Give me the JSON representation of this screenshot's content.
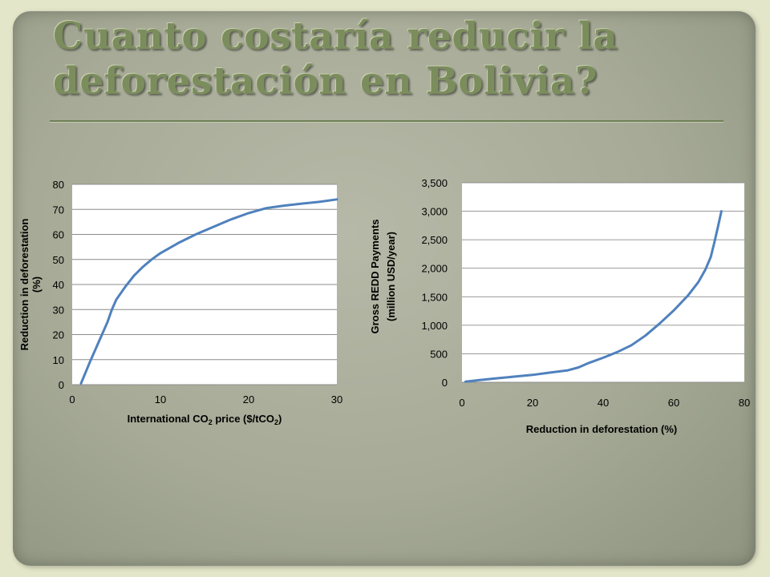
{
  "slide": {
    "title_line1": "Cuanto costaría reducir la",
    "title_line2": "deforestación en Bolivia?"
  },
  "chart_data": [
    {
      "type": "line",
      "title": "",
      "xlabel_parts": [
        "International  CO",
        "2",
        " price  ($/tCO",
        "2",
        ")"
      ],
      "ylabel": [
        "Reduction  in  deforestation",
        "(%)"
      ],
      "xlim": [
        0,
        30
      ],
      "ylim": [
        0,
        80
      ],
      "x_ticks": [
        0,
        10,
        20,
        30
      ],
      "y_ticks": [
        0,
        10,
        20,
        30,
        40,
        50,
        60,
        70,
        80
      ],
      "x_tick_labels": [
        "0",
        "10",
        "20",
        "30"
      ],
      "y_tick_labels": [
        "0",
        "10",
        "20",
        "30",
        "40",
        "50",
        "60",
        "70",
        "80"
      ],
      "grid": "horizontal",
      "line_color": "#4f81bd",
      "x": [
        1,
        2,
        3,
        4,
        4.5,
        5,
        6,
        7,
        8,
        9,
        10,
        12,
        14,
        16,
        18,
        20,
        22,
        24,
        26,
        28,
        30
      ],
      "y": [
        0.5,
        9,
        17,
        25,
        30,
        34,
        39,
        43.5,
        47,
        50,
        52.5,
        56.5,
        60,
        63,
        66,
        68.5,
        70.5,
        71.5,
        72.3,
        73,
        74
      ]
    },
    {
      "type": "line",
      "title": "",
      "xlabel": "Reduction in deforestation (%)",
      "ylabel": [
        "Gross REDD Payments",
        "(million USD/year)"
      ],
      "xlim": [
        0,
        80
      ],
      "ylim": [
        0,
        3500
      ],
      "x_ticks": [
        0,
        20,
        40,
        60,
        80
      ],
      "y_ticks": [
        0,
        500,
        1000,
        1500,
        2000,
        2500,
        3000,
        3500
      ],
      "x_tick_labels": [
        "0",
        "20",
        "40",
        "60",
        "80"
      ],
      "y_tick_labels": [
        "0",
        "500",
        "1,000",
        "1,500",
        "2,000",
        "2,500",
        "3,000",
        "3,500"
      ],
      "grid": "horizontal",
      "line_color": "#4f81bd",
      "x": [
        1,
        5,
        10,
        15,
        20,
        25,
        30,
        33,
        36,
        40,
        44,
        48,
        52,
        56,
        60,
        64,
        67,
        69,
        70.5,
        71.5,
        72.5,
        73.5
      ],
      "y": [
        10,
        40,
        70,
        100,
        130,
        170,
        210,
        260,
        340,
        430,
        530,
        650,
        820,
        1030,
        1260,
        1520,
        1760,
        1980,
        2200,
        2450,
        2720,
        3000
      ]
    }
  ]
}
